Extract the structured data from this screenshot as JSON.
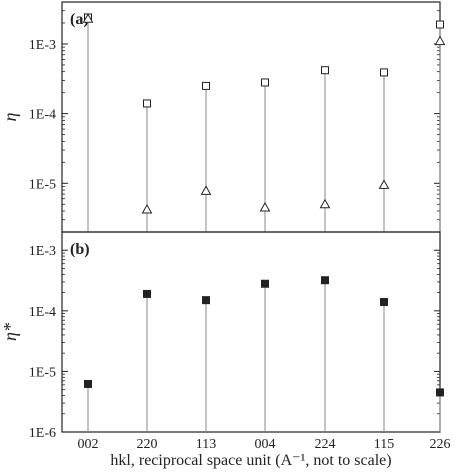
{
  "chart_data": [
    {
      "type": "scatter",
      "panel_label": "(a)",
      "ylabel": "η",
      "yscale": "log",
      "ylim": [
        2e-06,
        0.004
      ],
      "yticks": [
        {
          "label": "1E-3",
          "value": 0.001
        },
        {
          "label": "1E-4",
          "value": 0.0001
        },
        {
          "label": "1E-5",
          "value": 1e-05
        }
      ],
      "categories": [
        "002",
        "220",
        "113",
        "004",
        "224",
        "115",
        "226"
      ],
      "series": [
        {
          "marker": "open-square",
          "values": [
            0.0024,
            0.00014,
            0.00025,
            0.00028,
            0.00042,
            0.00039,
            0.0019
          ]
        },
        {
          "marker": "open-triangle",
          "values": [
            0.0023,
            4.2e-06,
            7.8e-06,
            4.5e-06,
            5e-06,
            9.5e-06,
            0.0011
          ]
        }
      ],
      "stems": true,
      "grid": false
    },
    {
      "type": "scatter",
      "panel_label": "(b)",
      "ylabel": "η*",
      "yscale": "log",
      "ylim": [
        1e-06,
        0.002
      ],
      "yticks": [
        {
          "label": "1E-3",
          "value": 0.001
        },
        {
          "label": "1E-4",
          "value": 0.0001
        },
        {
          "label": "1E-5",
          "value": 1e-05
        },
        {
          "label": "1E-6",
          "value": 1e-06
        }
      ],
      "categories": [
        "002",
        "220",
        "113",
        "004",
        "224",
        "115",
        "226"
      ],
      "series": [
        {
          "marker": "filled-square",
          "values": [
            6.2e-06,
            0.00019,
            0.00015,
            0.00028,
            0.00032,
            0.00014,
            4.5e-06
          ]
        }
      ],
      "stems": true,
      "grid": false
    }
  ],
  "xlabel": "hkl, reciprocal space unit (A⁻¹, not to scale)",
  "colors": {
    "axis": "#222222",
    "stem": "#888888",
    "marker": "#222222"
  }
}
